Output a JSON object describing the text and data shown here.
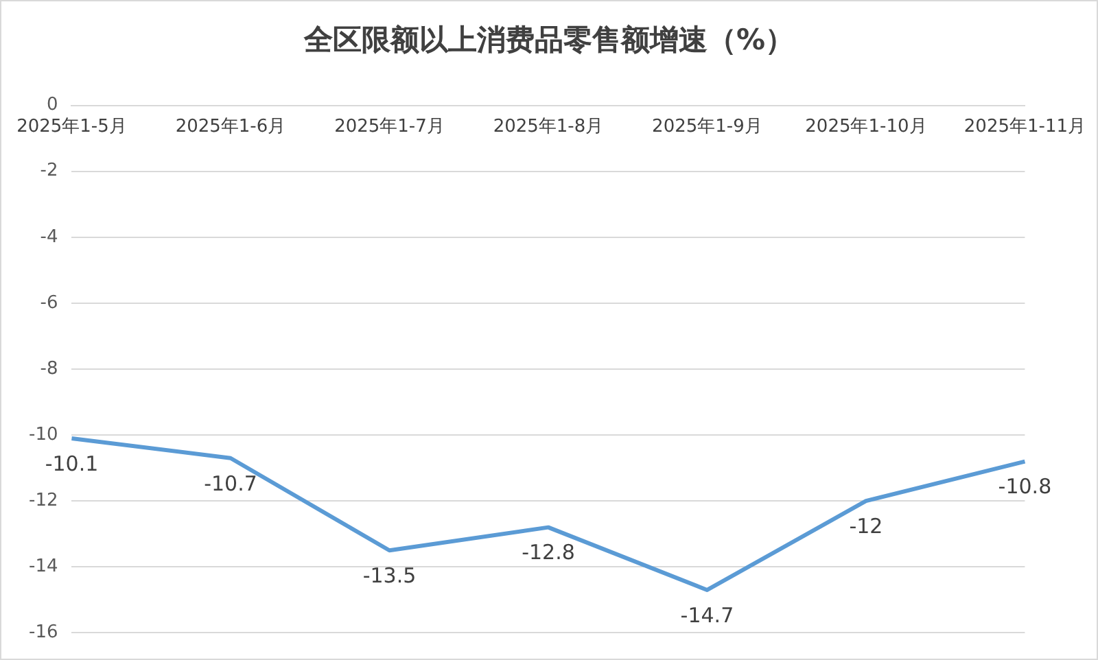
{
  "chart_data": {
    "type": "line",
    "title": "全区限额以上消费品零售额增速（%）",
    "categories": [
      "2025年1-5月",
      "2025年1-6月",
      "2025年1-7月",
      "2025年1-8月",
      "2025年1-9月",
      "2025年1-10月",
      "2025年1-11月"
    ],
    "series": [
      {
        "color": "#5b9bd5",
        "values": [
          -10.1,
          -10.7,
          -13.5,
          -12.8,
          -14.7,
          -12,
          -10.8
        ]
      }
    ],
    "ylim": [
      -16,
      0
    ],
    "yticks": [
      0,
      -2,
      -4,
      -6,
      -8,
      -10,
      -12,
      -14,
      -16
    ],
    "grid": "y",
    "legend": false,
    "marker": "none",
    "line_style": "solid",
    "data_labels": true
  }
}
